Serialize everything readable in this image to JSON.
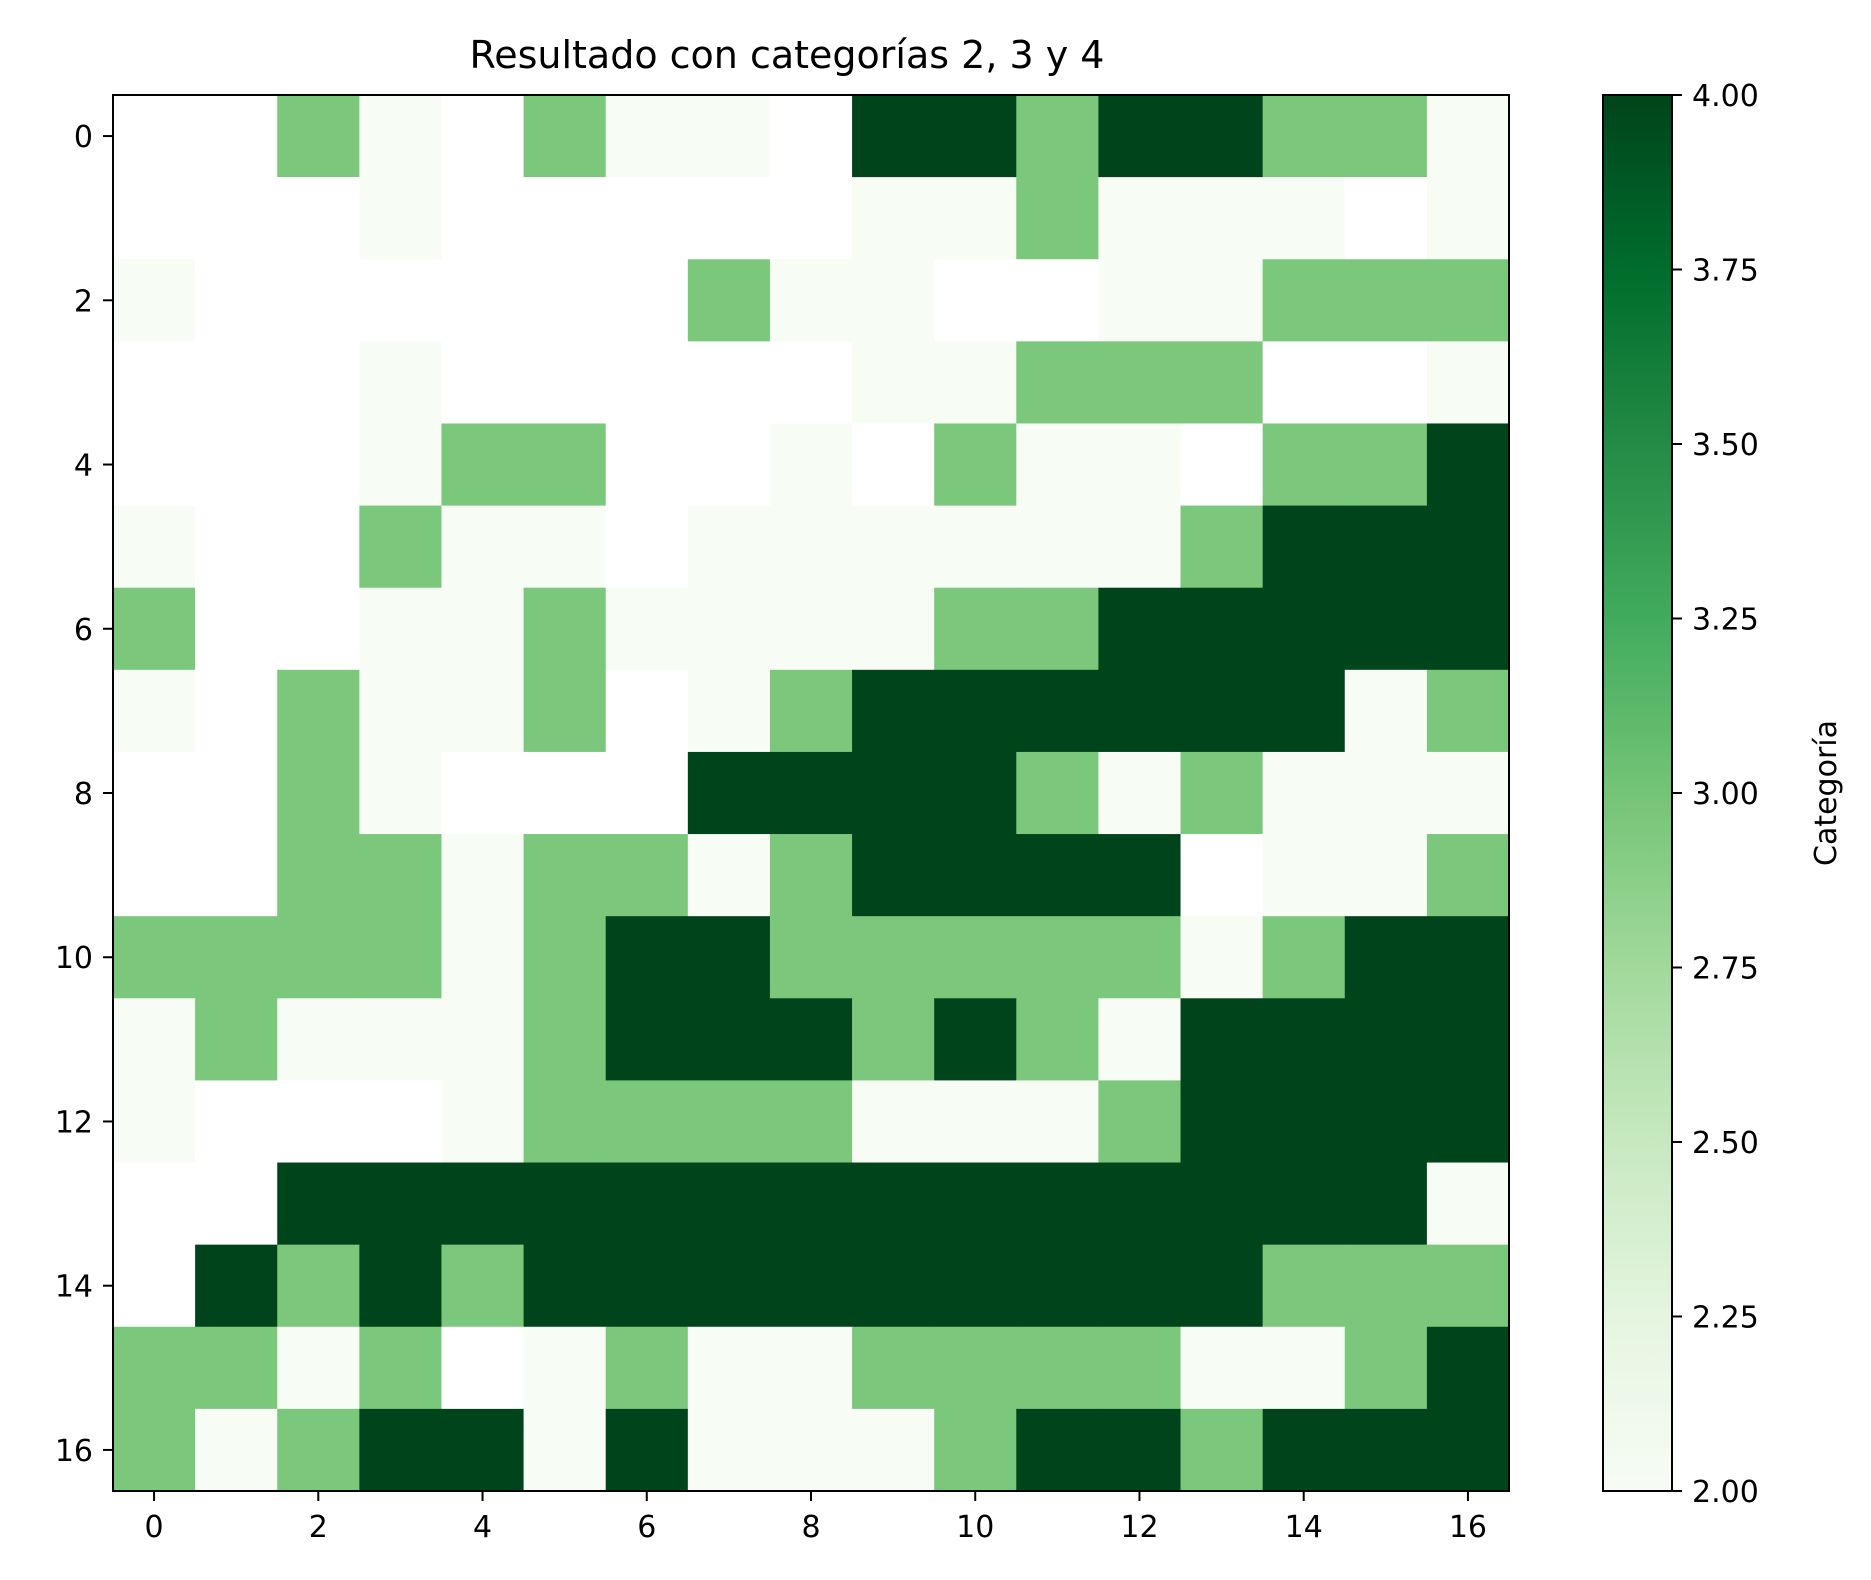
{
  "chart_data": {
    "type": "heatmap",
    "title": "Resultado con categorías 2, 3 y 4",
    "xlabel": "",
    "ylabel": "",
    "x_ticks": [
      0,
      2,
      4,
      6,
      8,
      10,
      12,
      14,
      16
    ],
    "y_ticks": [
      0,
      2,
      4,
      6,
      8,
      10,
      12,
      14,
      16
    ],
    "rows": 17,
    "cols": 17,
    "values": [
      [
        null,
        null,
        3,
        2,
        null,
        3,
        2,
        2,
        null,
        4,
        4,
        3,
        4,
        4,
        3,
        3,
        2
      ],
      [
        null,
        null,
        null,
        2,
        null,
        null,
        null,
        null,
        null,
        2,
        2,
        3,
        2,
        2,
        2,
        null,
        2
      ],
      [
        2,
        null,
        null,
        null,
        null,
        null,
        null,
        3,
        2,
        2,
        null,
        null,
        2,
        2,
        3,
        3,
        3
      ],
      [
        null,
        null,
        null,
        2,
        null,
        null,
        null,
        null,
        null,
        2,
        2,
        3,
        3,
        3,
        null,
        null,
        2
      ],
      [
        null,
        null,
        null,
        2,
        3,
        3,
        null,
        null,
        2,
        null,
        3,
        2,
        2,
        null,
        3,
        3,
        4
      ],
      [
        2,
        null,
        null,
        3,
        2,
        2,
        null,
        2,
        2,
        2,
        2,
        2,
        2,
        3,
        4,
        4,
        4
      ],
      [
        3,
        null,
        null,
        2,
        2,
        3,
        2,
        2,
        2,
        2,
        3,
        3,
        4,
        4,
        4,
        4,
        4
      ],
      [
        2,
        null,
        3,
        2,
        2,
        3,
        null,
        2,
        3,
        4,
        4,
        4,
        4,
        4,
        4,
        2,
        3
      ],
      [
        null,
        null,
        3,
        2,
        null,
        null,
        null,
        4,
        4,
        4,
        4,
        3,
        2,
        3,
        2,
        2,
        2
      ],
      [
        null,
        null,
        3,
        3,
        2,
        3,
        3,
        2,
        3,
        4,
        4,
        4,
        4,
        null,
        2,
        2,
        3
      ],
      [
        3,
        3,
        3,
        3,
        2,
        3,
        4,
        4,
        3,
        3,
        3,
        3,
        3,
        2,
        3,
        4,
        4
      ],
      [
        2,
        3,
        2,
        2,
        2,
        3,
        4,
        4,
        4,
        3,
        4,
        3,
        2,
        4,
        4,
        4,
        4
      ],
      [
        2,
        null,
        null,
        null,
        2,
        3,
        3,
        3,
        3,
        2,
        2,
        2,
        3,
        4,
        4,
        4,
        4
      ],
      [
        null,
        null,
        4,
        4,
        4,
        4,
        4,
        4,
        4,
        4,
        4,
        4,
        4,
        4,
        4,
        4,
        2
      ],
      [
        null,
        4,
        3,
        4,
        3,
        4,
        4,
        4,
        4,
        4,
        4,
        4,
        4,
        4,
        3,
        3,
        3
      ],
      [
        3,
        3,
        2,
        3,
        null,
        2,
        3,
        2,
        2,
        3,
        3,
        3,
        3,
        2,
        2,
        3,
        4
      ],
      [
        3,
        2,
        3,
        4,
        4,
        2,
        4,
        2,
        2,
        2,
        3,
        4,
        4,
        3,
        4,
        4,
        4
      ]
    ],
    "colorbar": {
      "label": "Categoría",
      "range": [
        2,
        4
      ],
      "ticks": [
        "2.00",
        "2.25",
        "2.50",
        "2.75",
        "3.00",
        "3.25",
        "3.50",
        "3.75",
        "4.00"
      ],
      "colormap": "Greens"
    },
    "colors": {
      "cat2": "#f7fcf5",
      "cat3": "#7bc87c",
      "cat4": "#00441b",
      "missing": "#ffffff"
    }
  }
}
